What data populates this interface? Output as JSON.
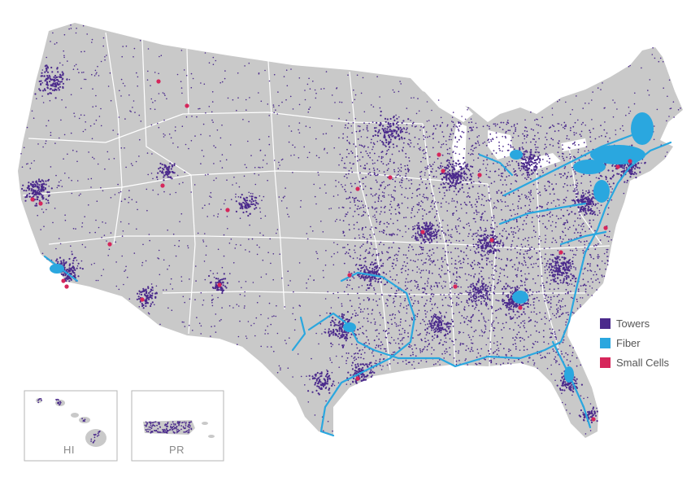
{
  "legend": [
    {
      "label": "Towers",
      "color": "#4b2a8c"
    },
    {
      "label": "Fiber",
      "color": "#2aa7df"
    },
    {
      "label": "Small Cells",
      "color": "#d6265b"
    }
  ],
  "insets": {
    "hawaii": "HI",
    "puerto_rico": "PR"
  },
  "colors": {
    "land": "#c9c9c9",
    "borders": "#ffffff",
    "background": "#ffffff"
  }
}
